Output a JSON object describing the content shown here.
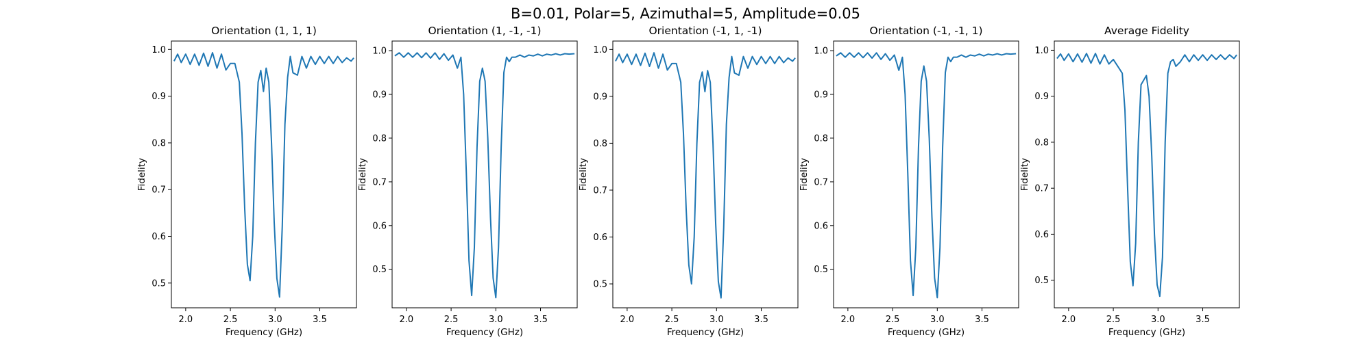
{
  "figure": {
    "suptitle": "B=0.01, Polar=5, Azimuthal=5, Amplitude=0.05"
  },
  "chart_data": [
    {
      "type": "line",
      "title": "Orientation (1, 1, 1)",
      "xlabel": "Frequency (GHz)",
      "ylabel": "Fidelity",
      "xlim": [
        1.84,
        3.91
      ],
      "ylim": [
        0.447,
        1.018
      ],
      "xticks": [
        2.0,
        2.5,
        3.0,
        3.5
      ],
      "xtick_labels": [
        "2.0",
        "2.5",
        "3.0",
        "3.5"
      ],
      "yticks": [
        0.5,
        0.6,
        0.7,
        0.8,
        0.9,
        1.0
      ],
      "ytick_labels": [
        "0.5",
        "0.6",
        "0.7",
        "0.8",
        "0.9",
        "1.0"
      ],
      "color": "#1f77b4",
      "grid": false,
      "x": [
        1.87,
        1.91,
        1.95,
        2.0,
        2.05,
        2.1,
        2.15,
        2.2,
        2.25,
        2.3,
        2.35,
        2.4,
        2.45,
        2.5,
        2.55,
        2.6,
        2.63,
        2.66,
        2.69,
        2.72,
        2.75,
        2.78,
        2.81,
        2.84,
        2.87,
        2.9,
        2.93,
        2.96,
        2.99,
        3.02,
        3.05,
        3.08,
        3.11,
        3.14,
        3.17,
        3.2,
        3.25,
        3.3,
        3.35,
        3.4,
        3.45,
        3.5,
        3.55,
        3.6,
        3.65,
        3.7,
        3.75,
        3.8,
        3.85,
        3.88
      ],
      "y": [
        0.975,
        0.99,
        0.972,
        0.99,
        0.968,
        0.99,
        0.966,
        0.992,
        0.964,
        0.993,
        0.96,
        0.99,
        0.956,
        0.97,
        0.97,
        0.93,
        0.82,
        0.66,
        0.54,
        0.505,
        0.6,
        0.8,
        0.93,
        0.955,
        0.91,
        0.96,
        0.93,
        0.8,
        0.63,
        0.51,
        0.47,
        0.62,
        0.84,
        0.94,
        0.985,
        0.95,
        0.945,
        0.985,
        0.96,
        0.985,
        0.968,
        0.985,
        0.97,
        0.985,
        0.97,
        0.985,
        0.972,
        0.982,
        0.975,
        0.982
      ]
    },
    {
      "type": "line",
      "title": "Orientation (1, -1, -1)",
      "xlabel": "Frequency (GHz)",
      "ylabel": "Fidelity",
      "xlim": [
        1.84,
        3.91
      ],
      "ylim": [
        0.412,
        1.022
      ],
      "xticks": [
        2.0,
        2.5,
        3.0,
        3.5
      ],
      "xtick_labels": [
        "2.0",
        "2.5",
        "3.0",
        "3.5"
      ],
      "yticks": [
        0.5,
        0.6,
        0.7,
        0.8,
        0.9,
        1.0
      ],
      "ytick_labels": [
        "0.5",
        "0.6",
        "0.7",
        "0.8",
        "0.9",
        "1.0"
      ],
      "color": "#1f77b4",
      "grid": false,
      "x": [
        1.87,
        1.92,
        1.97,
        2.02,
        2.07,
        2.12,
        2.17,
        2.22,
        2.27,
        2.32,
        2.37,
        2.42,
        2.47,
        2.52,
        2.57,
        2.61,
        2.64,
        2.67,
        2.7,
        2.73,
        2.76,
        2.79,
        2.82,
        2.85,
        2.88,
        2.91,
        2.94,
        2.97,
        3.0,
        3.03,
        3.06,
        3.09,
        3.12,
        3.15,
        3.18,
        3.22,
        3.27,
        3.32,
        3.37,
        3.42,
        3.47,
        3.52,
        3.57,
        3.62,
        3.67,
        3.72,
        3.77,
        3.82,
        3.88
      ],
      "y": [
        0.988,
        0.995,
        0.985,
        0.995,
        0.985,
        0.995,
        0.984,
        0.995,
        0.983,
        0.995,
        0.98,
        0.993,
        0.978,
        0.99,
        0.96,
        0.985,
        0.9,
        0.72,
        0.52,
        0.44,
        0.55,
        0.78,
        0.93,
        0.96,
        0.93,
        0.8,
        0.62,
        0.48,
        0.435,
        0.55,
        0.78,
        0.95,
        0.985,
        0.975,
        0.985,
        0.985,
        0.99,
        0.985,
        0.99,
        0.988,
        0.992,
        0.988,
        0.992,
        0.99,
        0.993,
        0.99,
        0.993,
        0.992,
        0.993
      ]
    },
    {
      "type": "line",
      "title": "Orientation (-1, 1, -1)",
      "xlabel": "Frequency (GHz)",
      "ylabel": "Fidelity",
      "xlim": [
        1.84,
        3.91
      ],
      "ylim": [
        0.449,
        1.018
      ],
      "xticks": [
        2.0,
        2.5,
        3.0,
        3.5
      ],
      "xtick_labels": [
        "2.0",
        "2.5",
        "3.0",
        "3.5"
      ],
      "yticks": [
        0.5,
        0.6,
        0.7,
        0.8,
        0.9,
        1.0
      ],
      "ytick_labels": [
        "0.5",
        "0.6",
        "0.7",
        "0.8",
        "0.9",
        "1.0"
      ],
      "color": "#1f77b4",
      "grid": false,
      "x": [
        1.87,
        1.91,
        1.95,
        2.0,
        2.05,
        2.1,
        2.15,
        2.2,
        2.25,
        2.3,
        2.35,
        2.4,
        2.45,
        2.5,
        2.55,
        2.6,
        2.63,
        2.66,
        2.69,
        2.72,
        2.75,
        2.78,
        2.81,
        2.84,
        2.87,
        2.9,
        2.93,
        2.96,
        2.99,
        3.02,
        3.05,
        3.08,
        3.11,
        3.14,
        3.17,
        3.2,
        3.25,
        3.3,
        3.35,
        3.4,
        3.45,
        3.5,
        3.55,
        3.6,
        3.65,
        3.7,
        3.75,
        3.8,
        3.85,
        3.88
      ],
      "y": [
        0.975,
        0.99,
        0.972,
        0.99,
        0.968,
        0.99,
        0.966,
        0.992,
        0.964,
        0.993,
        0.96,
        0.99,
        0.956,
        0.97,
        0.97,
        0.93,
        0.82,
        0.66,
        0.54,
        0.5,
        0.6,
        0.8,
        0.93,
        0.952,
        0.91,
        0.955,
        0.93,
        0.8,
        0.63,
        0.505,
        0.47,
        0.62,
        0.84,
        0.94,
        0.985,
        0.95,
        0.945,
        0.985,
        0.96,
        0.985,
        0.968,
        0.985,
        0.97,
        0.985,
        0.97,
        0.985,
        0.972,
        0.982,
        0.975,
        0.982
      ]
    },
    {
      "type": "line",
      "title": "Orientation (-1, -1, 1)",
      "xlabel": "Frequency (GHz)",
      "ylabel": "Fidelity",
      "xlim": [
        1.84,
        3.91
      ],
      "ylim": [
        0.412,
        1.022
      ],
      "xticks": [
        2.0,
        2.5,
        3.0,
        3.5
      ],
      "xtick_labels": [
        "2.0",
        "2.5",
        "3.0",
        "3.5"
      ],
      "yticks": [
        0.5,
        0.6,
        0.7,
        0.8,
        0.9,
        1.0
      ],
      "ytick_labels": [
        "0.5",
        "0.6",
        "0.7",
        "0.8",
        "0.9",
        "1.0"
      ],
      "color": "#1f77b4",
      "grid": false,
      "x": [
        1.87,
        1.92,
        1.97,
        2.02,
        2.07,
        2.12,
        2.17,
        2.22,
        2.27,
        2.32,
        2.37,
        2.42,
        2.47,
        2.52,
        2.57,
        2.61,
        2.64,
        2.67,
        2.7,
        2.73,
        2.76,
        2.79,
        2.82,
        2.85,
        2.88,
        2.91,
        2.94,
        2.97,
        3.0,
        3.03,
        3.06,
        3.09,
        3.12,
        3.15,
        3.18,
        3.22,
        3.27,
        3.32,
        3.37,
        3.42,
        3.47,
        3.52,
        3.57,
        3.62,
        3.67,
        3.72,
        3.77,
        3.82,
        3.88
      ],
      "y": [
        0.988,
        0.995,
        0.985,
        0.995,
        0.985,
        0.995,
        0.984,
        0.995,
        0.983,
        0.995,
        0.98,
        0.993,
        0.978,
        0.99,
        0.955,
        0.985,
        0.9,
        0.72,
        0.52,
        0.44,
        0.55,
        0.78,
        0.93,
        0.965,
        0.93,
        0.8,
        0.62,
        0.48,
        0.435,
        0.55,
        0.78,
        0.95,
        0.985,
        0.975,
        0.985,
        0.985,
        0.99,
        0.985,
        0.99,
        0.988,
        0.992,
        0.988,
        0.992,
        0.99,
        0.993,
        0.99,
        0.993,
        0.992,
        0.993
      ]
    },
    {
      "type": "line",
      "title": "Average Fidelity",
      "xlabel": "Frequency (GHz)",
      "ylabel": "Fidelity",
      "xlim": [
        1.84,
        3.91
      ],
      "ylim": [
        0.44,
        1.02
      ],
      "xticks": [
        2.0,
        2.5,
        3.0,
        3.5
      ],
      "xtick_labels": [
        "2.0",
        "2.5",
        "3.0",
        "3.5"
      ],
      "yticks": [
        0.5,
        0.6,
        0.7,
        0.8,
        0.9,
        1.0
      ],
      "ytick_labels": [
        "0.5",
        "0.6",
        "0.7",
        "0.8",
        "0.9",
        "1.0"
      ],
      "color": "#1f77b4",
      "grid": false,
      "x": [
        1.87,
        1.91,
        1.95,
        2.0,
        2.05,
        2.1,
        2.15,
        2.2,
        2.25,
        2.3,
        2.35,
        2.4,
        2.45,
        2.5,
        2.55,
        2.6,
        2.63,
        2.66,
        2.69,
        2.72,
        2.75,
        2.78,
        2.81,
        2.84,
        2.87,
        2.9,
        2.93,
        2.96,
        2.99,
        3.02,
        3.05,
        3.08,
        3.11,
        3.14,
        3.17,
        3.2,
        3.25,
        3.3,
        3.35,
        3.4,
        3.45,
        3.5,
        3.55,
        3.6,
        3.65,
        3.7,
        3.75,
        3.8,
        3.85,
        3.88
      ],
      "y": [
        0.982,
        0.992,
        0.978,
        0.992,
        0.975,
        0.992,
        0.974,
        0.993,
        0.972,
        0.993,
        0.97,
        0.99,
        0.97,
        0.98,
        0.965,
        0.95,
        0.87,
        0.7,
        0.54,
        0.488,
        0.58,
        0.8,
        0.925,
        0.935,
        0.945,
        0.9,
        0.77,
        0.6,
        0.49,
        0.465,
        0.55,
        0.8,
        0.95,
        0.975,
        0.98,
        0.965,
        0.975,
        0.99,
        0.975,
        0.99,
        0.978,
        0.99,
        0.978,
        0.99,
        0.98,
        0.99,
        0.98,
        0.99,
        0.982,
        0.99
      ]
    }
  ]
}
